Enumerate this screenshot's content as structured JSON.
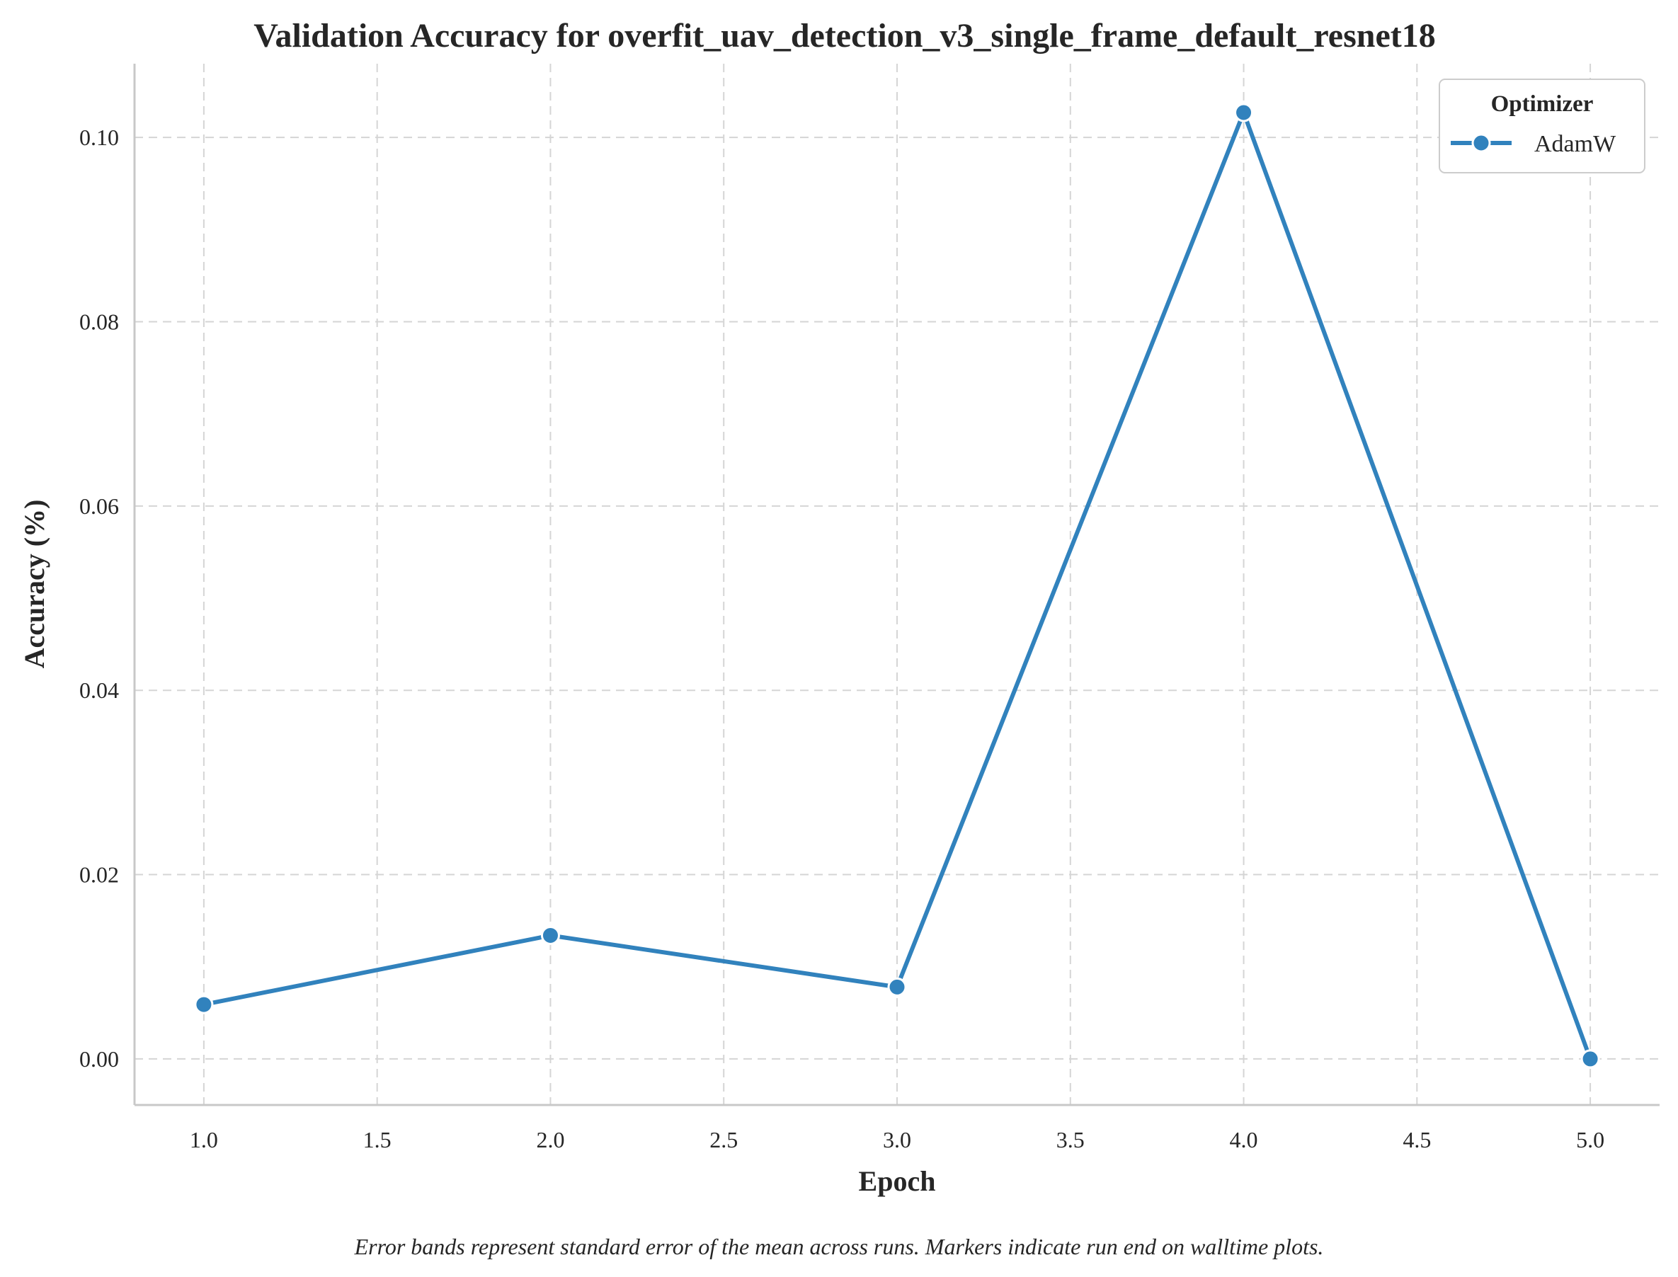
{
  "chart_data": {
    "type": "line",
    "title": "Validation Accuracy for overfit_uav_detection_v3_single_frame_default_resnet18",
    "xlabel": "Epoch",
    "ylabel": "Accuracy (%)",
    "xlim": [
      0.8,
      5.2
    ],
    "ylim": [
      -0.005,
      0.108
    ],
    "x_ticks": [
      1.0,
      1.5,
      2.0,
      2.5,
      3.0,
      3.5,
      4.0,
      4.5,
      5.0
    ],
    "x_tick_labels": [
      "1.0",
      "1.5",
      "2.0",
      "2.5",
      "3.0",
      "3.5",
      "4.0",
      "4.5",
      "5.0"
    ],
    "y_ticks": [
      0.0,
      0.02,
      0.04,
      0.06,
      0.08,
      0.1
    ],
    "y_tick_labels": [
      "0.00",
      "0.02",
      "0.04",
      "0.06",
      "0.08",
      "0.10"
    ],
    "grid": true,
    "legend": {
      "title": "Optimizer",
      "placement": "top-right"
    },
    "series": [
      {
        "name": "AdamW",
        "color": "#3182bd",
        "x": [
          1,
          2,
          3,
          4,
          5
        ],
        "values": [
          0.0059,
          0.0134,
          0.0078,
          0.1027,
          0.0
        ]
      }
    ],
    "caption": "Error bands represent standard error of the mean across runs. Markers indicate run end on walltime plots."
  }
}
